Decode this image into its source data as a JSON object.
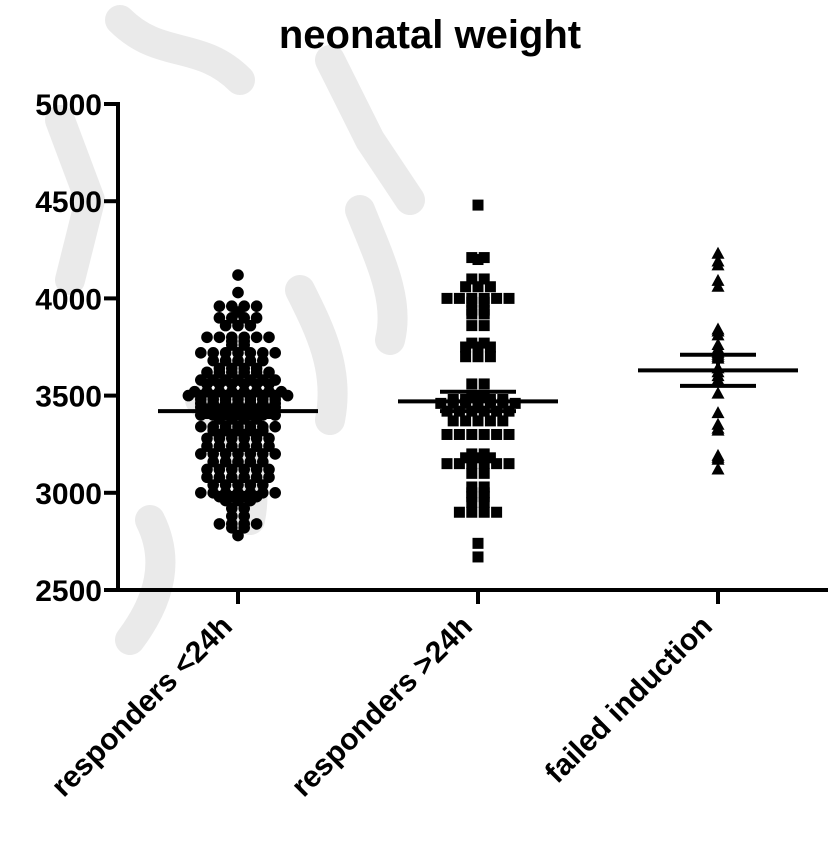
{
  "chart_data": {
    "type": "scatter",
    "title": "neonatal weight",
    "xlabel": "",
    "ylabel": "",
    "ylim": [
      2500,
      5000
    ],
    "yticks": [
      2500,
      3000,
      3500,
      4000,
      4500,
      5000
    ],
    "grid": false,
    "legend": "none",
    "categories": [
      "responders <24h",
      "responders >24h",
      "failed induction"
    ],
    "series": [
      {
        "marker": "circle",
        "mean": 3420,
        "sem_low": 3390,
        "sem_high": 3450,
        "values": [
          4120,
          4030,
          3960,
          3960,
          3960,
          3960,
          3930,
          3900,
          3900,
          3900,
          3900,
          3860,
          3860,
          3860,
          3800,
          3800,
          3800,
          3800,
          3800,
          3800,
          3780,
          3780,
          3760,
          3760,
          3720,
          3720,
          3720,
          3720,
          3720,
          3720,
          3720,
          3680,
          3680,
          3680,
          3680,
          3680,
          3640,
          3640,
          3640,
          3640,
          3620,
          3620,
          3620,
          3620,
          3620,
          3620,
          3580,
          3580,
          3580,
          3580,
          3580,
          3580,
          3580,
          3560,
          3560,
          3560,
          3560,
          3560,
          3560,
          3520,
          3520,
          3520,
          3520,
          3520,
          3520,
          3520,
          3520,
          3500,
          3500,
          3500,
          3500,
          3500,
          3500,
          3500,
          3500,
          3500,
          3480,
          3480,
          3480,
          3480,
          3480,
          3480,
          3480,
          3460,
          3460,
          3460,
          3460,
          3460,
          3460,
          3460,
          3440,
          3440,
          3440,
          3440,
          3440,
          3440,
          3440,
          3420,
          3420,
          3420,
          3420,
          3420,
          3420,
          3400,
          3400,
          3400,
          3400,
          3400,
          3400,
          3400,
          3380,
          3380,
          3380,
          3380,
          3340,
          3340,
          3340,
          3340,
          3340,
          3340,
          3340,
          3320,
          3320,
          3320,
          3320,
          3320,
          3300,
          3300,
          3300,
          3300,
          3280,
          3280,
          3280,
          3280,
          3280,
          3280,
          3240,
          3240,
          3240,
          3240,
          3240,
          3240,
          3200,
          3200,
          3200,
          3200,
          3200,
          3200,
          3200,
          3160,
          3160,
          3160,
          3160,
          3160,
          3120,
          3120,
          3120,
          3120,
          3120,
          3120,
          3080,
          3080,
          3080,
          3080,
          3080,
          3080,
          3040,
          3040,
          3040,
          3040,
          3040,
          3000,
          3000,
          3000,
          3000,
          3000,
          3000,
          3000,
          2980,
          2980,
          2980,
          2980,
          2960,
          2960,
          2960,
          2920,
          2920,
          2880,
          2880,
          2840,
          2840,
          2840,
          2840,
          2820,
          2820,
          2780
        ]
      },
      {
        "marker": "square",
        "mean": 3470,
        "sem_low": 3420,
        "sem_high": 3520,
        "values": [
          4480,
          4210,
          4210,
          4200,
          4100,
          4100,
          4060,
          4060,
          4060,
          4000,
          4000,
          4000,
          4000,
          4000,
          4000,
          3980,
          3980,
          3940,
          3940,
          3920,
          3920,
          3860,
          3860,
          3770,
          3770,
          3750,
          3750,
          3750,
          3700,
          3700,
          3700,
          3560,
          3560,
          3500,
          3500,
          3480,
          3480,
          3480,
          3480,
          3480,
          3460,
          3460,
          3460,
          3460,
          3460,
          3460,
          3460,
          3420,
          3420,
          3420,
          3420,
          3420,
          3420,
          3370,
          3370,
          3370,
          3370,
          3370,
          3300,
          3300,
          3300,
          3300,
          3300,
          3300,
          3200,
          3200,
          3180,
          3180,
          3180,
          3150,
          3150,
          3150,
          3150,
          3150,
          3150,
          3100,
          3100,
          3030,
          3030,
          3000,
          3000,
          2980,
          2980,
          2950,
          2950,
          2900,
          2900,
          2900,
          2900,
          2740,
          2670
        ]
      },
      {
        "marker": "triangle",
        "mean": 3630,
        "sem_low": 3550,
        "sem_high": 3710,
        "values": [
          4230,
          4190,
          4170,
          4090,
          4060,
          3840,
          3830,
          3810,
          3760,
          3740,
          3720,
          3710,
          3700,
          3690,
          3640,
          3620,
          3600,
          3580,
          3510,
          3410,
          3350,
          3330,
          3320,
          3190,
          3180,
          3170,
          3120
        ]
      }
    ]
  }
}
